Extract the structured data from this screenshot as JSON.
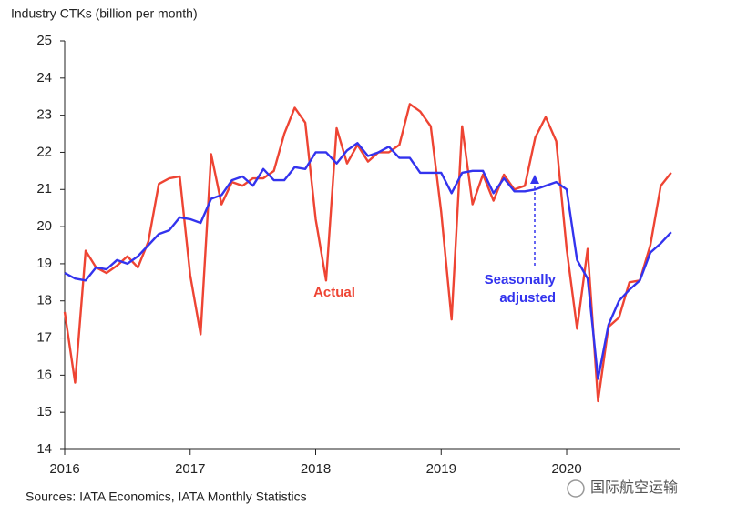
{
  "chart_data": {
    "type": "line",
    "ylabel": "Industry CTKs (billion per month)",
    "source": "Sources: IATA Economics, IATA Monthly Statistics",
    "watermark": "国际航空运输",
    "x": [
      2016,
      2016.083,
      2016.167,
      2016.25,
      2016.333,
      2016.417,
      2016.5,
      2016.583,
      2016.667,
      2016.75,
      2016.833,
      2016.917,
      2017,
      2017.083,
      2017.167,
      2017.25,
      2017.333,
      2017.417,
      2017.5,
      2017.583,
      2017.667,
      2017.75,
      2017.833,
      2017.917,
      2018,
      2018.083,
      2018.167,
      2018.25,
      2018.333,
      2018.417,
      2018.5,
      2018.583,
      2018.667,
      2018.75,
      2018.833,
      2018.917,
      2019,
      2019.083,
      2019.167,
      2019.25,
      2019.333,
      2019.417,
      2019.5,
      2019.583,
      2019.667,
      2019.75,
      2019.833,
      2019.917,
      2020,
      2020.083,
      2020.167,
      2020.25,
      2020.333,
      2020.417,
      2020.5,
      2020.583,
      2020.667,
      2020.75,
      2020.833
    ],
    "series": [
      {
        "name": "Actual",
        "color": "#ee4433",
        "values": [
          17.7,
          15.8,
          19.35,
          18.9,
          18.75,
          18.95,
          19.2,
          18.9,
          19.6,
          21.15,
          21.3,
          21.35,
          18.7,
          17.1,
          21.95,
          20.6,
          21.2,
          21.1,
          21.3,
          21.3,
          21.5,
          22.5,
          23.2,
          22.8,
          20.2,
          18.55,
          22.65,
          21.7,
          22.2,
          21.75,
          22.0,
          22.0,
          22.2,
          23.3,
          23.1,
          22.7,
          20.4,
          17.5,
          22.7,
          20.6,
          21.4,
          20.7,
          21.4,
          21.0,
          21.1,
          22.4,
          22.95,
          22.3,
          19.4,
          17.25,
          19.4,
          15.3,
          17.3,
          17.55,
          18.5,
          18.55,
          19.5,
          21.1,
          21.45
        ]
      },
      {
        "name": "Seasonally adjusted",
        "label_lines": [
          "Seasonally",
          "adjusted"
        ],
        "color": "#3333ee",
        "values": [
          18.75,
          18.6,
          18.55,
          18.9,
          18.85,
          19.1,
          19.0,
          19.2,
          19.5,
          19.8,
          19.9,
          20.25,
          20.2,
          20.1,
          20.75,
          20.85,
          21.25,
          21.35,
          21.1,
          21.55,
          21.25,
          21.25,
          21.6,
          21.55,
          22.0,
          22.0,
          21.7,
          22.05,
          22.25,
          21.9,
          22.0,
          22.15,
          21.85,
          21.85,
          21.45,
          21.45,
          21.45,
          20.9,
          21.45,
          21.5,
          21.5,
          20.9,
          21.3,
          20.95,
          20.95,
          21.0,
          21.1,
          21.2,
          21.0,
          19.1,
          18.6,
          15.9,
          17.35,
          18.0,
          18.3,
          18.55,
          19.3,
          19.55,
          19.85
        ]
      }
    ],
    "xlim": [
      2016,
      2020.9
    ],
    "xticks": [
      2016,
      2017,
      2018,
      2019,
      2020
    ],
    "ylim": [
      14,
      25
    ],
    "yticks": [
      14,
      15,
      16,
      17,
      18,
      19,
      20,
      21,
      22,
      23,
      24,
      25
    ],
    "grid": false
  }
}
